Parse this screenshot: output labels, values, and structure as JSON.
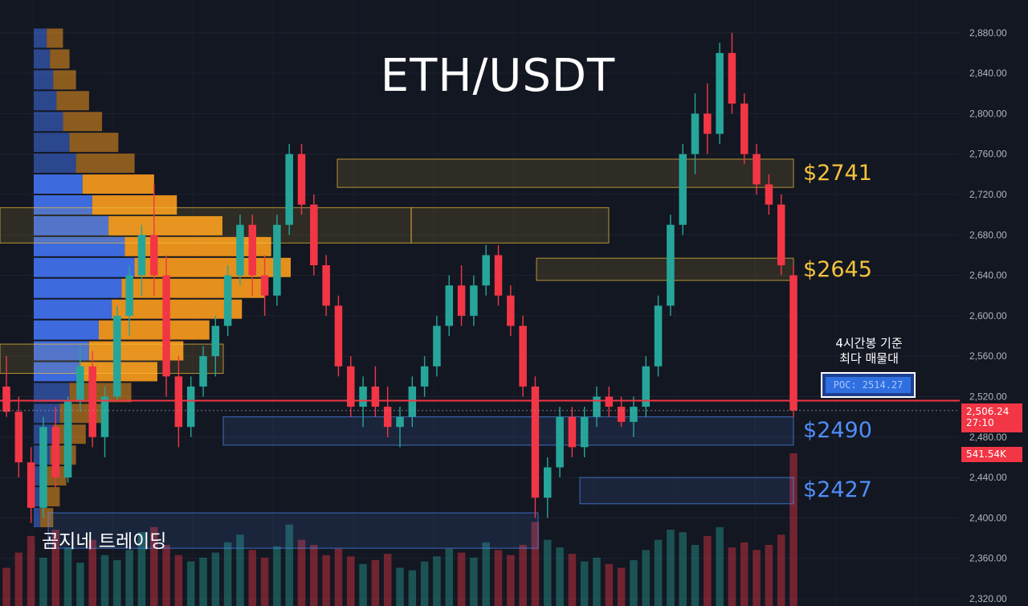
{
  "title": "ETH/USDT",
  "brand": "곰지네 트레이딩",
  "colors": {
    "background": "#131722",
    "up": "#26a69a",
    "down": "#f23645",
    "resistance": "#f5c33b",
    "support": "#4f8df7",
    "profile_buy": "#3f6fe8",
    "profile_sell": "#f0961e"
  },
  "annotations": {
    "zones": [
      {
        "label": "$2741",
        "price_low": 2727,
        "price_high": 2755,
        "kind": "resistance"
      },
      {
        "label": "$2645",
        "price_low": 2635,
        "price_high": 2657,
        "kind": "resistance"
      },
      {
        "label": "$2490",
        "price_low": 2472,
        "price_high": 2500,
        "kind": "support"
      },
      {
        "label": "$2427",
        "price_low": 2414,
        "price_high": 2440,
        "kind": "support"
      }
    ],
    "volume_node_note_line1": "4시간봉 기준",
    "volume_node_note_line2": "최다 매물대",
    "poc_label": "POC: 2514.27"
  },
  "price_axis": {
    "current_price": "2,506.24",
    "countdown": "27:10",
    "current_volume": "541.54K"
  },
  "chart_data": {
    "type": "candlestick",
    "symbol": "ETH/USDT",
    "timeframe": "4h",
    "ylim": [
      2310,
      2890
    ],
    "y_ticks": [
      "2,320.00",
      "2,360.00",
      "2,400.00",
      "2,440.00",
      "2,480.00",
      "2,520.00",
      "2,560.00",
      "2,600.00",
      "2,640.00",
      "2,680.00",
      "2,720.00",
      "2,760.00",
      "2,800.00",
      "2,840.00",
      "2,880.00"
    ],
    "poc": 2514.27,
    "last_price": 2506.24,
    "horizontal_line": 2516,
    "candles": [
      [
        2530,
        2560,
        2500,
        2505
      ],
      [
        2505,
        2520,
        2440,
        2455
      ],
      [
        2455,
        2470,
        2395,
        2410
      ],
      [
        2410,
        2500,
        2400,
        2490
      ],
      [
        2490,
        2510,
        2430,
        2440
      ],
      [
        2440,
        2520,
        2435,
        2515
      ],
      [
        2515,
        2570,
        2505,
        2550
      ],
      [
        2550,
        2565,
        2470,
        2480
      ],
      [
        2480,
        2530,
        2460,
        2520
      ],
      [
        2520,
        2610,
        2515,
        2600
      ],
      [
        2600,
        2650,
        2580,
        2640
      ],
      [
        2640,
        2690,
        2620,
        2680
      ],
      [
        2680,
        2730,
        2620,
        2640
      ],
      [
        2640,
        2660,
        2520,
        2540
      ],
      [
        2540,
        2560,
        2470,
        2490
      ],
      [
        2490,
        2540,
        2480,
        2530
      ],
      [
        2530,
        2570,
        2520,
        2560
      ],
      [
        2560,
        2600,
        2540,
        2590
      ],
      [
        2590,
        2650,
        2580,
        2640
      ],
      [
        2640,
        2700,
        2630,
        2690
      ],
      [
        2690,
        2700,
        2620,
        2640
      ],
      [
        2640,
        2660,
        2600,
        2620
      ],
      [
        2620,
        2700,
        2610,
        2690
      ],
      [
        2690,
        2770,
        2680,
        2760
      ],
      [
        2760,
        2770,
        2700,
        2710
      ],
      [
        2710,
        2720,
        2640,
        2650
      ],
      [
        2650,
        2660,
        2600,
        2610
      ],
      [
        2610,
        2620,
        2540,
        2550
      ],
      [
        2550,
        2560,
        2500,
        2510
      ],
      [
        2510,
        2540,
        2490,
        2530
      ],
      [
        2530,
        2550,
        2500,
        2510
      ],
      [
        2510,
        2530,
        2480,
        2490
      ],
      [
        2490,
        2510,
        2470,
        2500
      ],
      [
        2500,
        2540,
        2490,
        2530
      ],
      [
        2530,
        2560,
        2520,
        2550
      ],
      [
        2550,
        2600,
        2540,
        2590
      ],
      [
        2590,
        2640,
        2580,
        2630
      ],
      [
        2630,
        2650,
        2590,
        2600
      ],
      [
        2600,
        2640,
        2590,
        2630
      ],
      [
        2630,
        2670,
        2620,
        2660
      ],
      [
        2660,
        2670,
        2610,
        2620
      ],
      [
        2620,
        2630,
        2580,
        2590
      ],
      [
        2590,
        2600,
        2520,
        2530
      ],
      [
        2530,
        2540,
        2400,
        2420
      ],
      [
        2420,
        2460,
        2400,
        2450
      ],
      [
        2450,
        2510,
        2440,
        2500
      ],
      [
        2500,
        2510,
        2460,
        2470
      ],
      [
        2470,
        2510,
        2460,
        2500
      ],
      [
        2500,
        2530,
        2490,
        2520
      ],
      [
        2520,
        2530,
        2500,
        2510
      ],
      [
        2510,
        2520,
        2490,
        2495
      ],
      [
        2495,
        2520,
        2480,
        2510
      ],
      [
        2510,
        2560,
        2500,
        2550
      ],
      [
        2550,
        2620,
        2540,
        2610
      ],
      [
        2610,
        2700,
        2600,
        2690
      ],
      [
        2690,
        2770,
        2680,
        2760
      ],
      [
        2760,
        2820,
        2740,
        2800
      ],
      [
        2800,
        2830,
        2760,
        2780
      ],
      [
        2780,
        2870,
        2770,
        2860
      ],
      [
        2860,
        2880,
        2800,
        2810
      ],
      [
        2810,
        2820,
        2750,
        2760
      ],
      [
        2760,
        2770,
        2720,
        2730
      ],
      [
        2730,
        2740,
        2700,
        2710
      ],
      [
        2710,
        2720,
        2640,
        2650
      ],
      [
        2640,
        2650,
        2500,
        2506.24
      ]
    ],
    "volumes": [
      30,
      42,
      55,
      38,
      60,
      46,
      34,
      52,
      40,
      36,
      44,
      58,
      62,
      48,
      40,
      35,
      38,
      42,
      50,
      56,
      44,
      38,
      47,
      64,
      52,
      48,
      40,
      45,
      39,
      33,
      36,
      41,
      30,
      28,
      35,
      39,
      45,
      42,
      38,
      50,
      44,
      40,
      48,
      66,
      52,
      46,
      41,
      35,
      38,
      33,
      30,
      36,
      44,
      52,
      60,
      58,
      48,
      55,
      62,
      46,
      50,
      44,
      48,
      56,
      120
    ],
    "volume_profile": {
      "price_low": 2390,
      "price_high": 2885,
      "rows": [
        [
          8,
          10
        ],
        [
          10,
          12
        ],
        [
          12,
          14
        ],
        [
          14,
          20
        ],
        [
          18,
          24
        ],
        [
          22,
          30
        ],
        [
          26,
          36
        ],
        [
          30,
          44
        ],
        [
          36,
          52
        ],
        [
          46,
          70
        ],
        [
          56,
          90
        ],
        [
          62,
          96
        ],
        [
          54,
          88
        ],
        [
          48,
          80
        ],
        [
          40,
          68
        ],
        [
          34,
          58
        ],
        [
          28,
          48
        ],
        [
          22,
          38
        ],
        [
          16,
          28
        ],
        [
          12,
          20
        ],
        [
          10,
          16
        ],
        [
          8,
          12
        ],
        [
          6,
          10
        ],
        [
          4,
          8
        ]
      ]
    }
  }
}
